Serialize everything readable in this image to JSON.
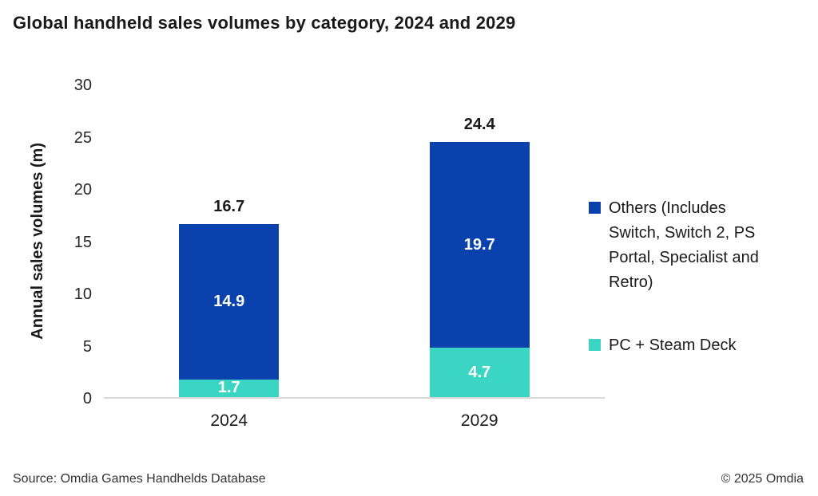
{
  "title": "Global handheld sales volumes by category, 2024 and 2029",
  "footer": {
    "source": "Source: Omdia Games Handhelds Database",
    "copyright": "© 2025 Omdia"
  },
  "chart_data": {
    "type": "bar",
    "stacked": true,
    "title": "Global handheld sales volumes by category, 2024 and 2029",
    "categories": [
      "2024",
      "2029"
    ],
    "series": [
      {
        "name": "Others (Includes Switch, Switch 2, PS Portal, Specialist and Retro)",
        "color": "#0a41ad",
        "values": [
          14.9,
          19.7
        ]
      },
      {
        "name": "PC + Steam Deck",
        "color": "#3bd6c3",
        "values": [
          1.7,
          4.7
        ]
      }
    ],
    "totals": [
      16.7,
      24.4
    ],
    "xlabel": "",
    "ylabel": "Annual sales volumes (m)",
    "ylim": [
      0,
      30
    ],
    "yticks": [
      0,
      5,
      10,
      15,
      20,
      25,
      30
    ],
    "grid": false,
    "legend_position": "right",
    "inside_label_color": "#ffffff",
    "baseline_color": "#d9d9d9"
  }
}
